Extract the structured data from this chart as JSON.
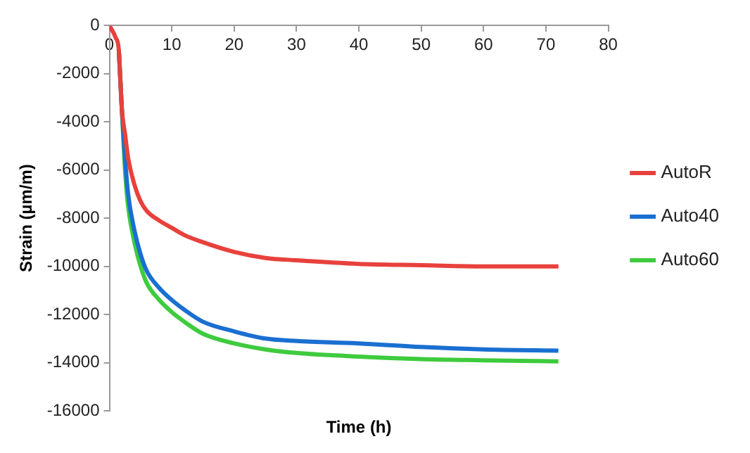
{
  "chart_data": {
    "type": "line",
    "xlabel": "Time (h)",
    "ylabel": "Strain (µm/m)",
    "xlim": [
      0,
      80
    ],
    "xticks": [
      0,
      10,
      20,
      30,
      40,
      50,
      60,
      70,
      80
    ],
    "ylim": [
      -16000,
      0
    ],
    "yticks": [
      -16000,
      -14000,
      -12000,
      -10000,
      -8000,
      -6000,
      -4000,
      -2000,
      0
    ],
    "grid": false,
    "legend": "right",
    "marker": "none",
    "line_style": "solid",
    "series": [
      {
        "name": "AutoR",
        "color": "#e8413c",
        "x": [
          0,
          1,
          1.5,
          2,
          2.5,
          3,
          4,
          5,
          6,
          8,
          10,
          12,
          15,
          20,
          25,
          30,
          40,
          50,
          60,
          72
        ],
        "values": [
          0,
          -500,
          -1000,
          -3500,
          -4500,
          -5500,
          -6600,
          -7300,
          -7700,
          -8100,
          -8400,
          -8700,
          -9000,
          -9400,
          -9650,
          -9750,
          -9900,
          -9950,
          -10000,
          -10000
        ]
      },
      {
        "name": "Auto40",
        "color": "#1a6fd1",
        "x": [
          1.5,
          2,
          2.5,
          3,
          4,
          5,
          6,
          8,
          10,
          12,
          15,
          20,
          25,
          30,
          40,
          50,
          60,
          72
        ],
        "values": [
          -1000,
          -3500,
          -5500,
          -7000,
          -8500,
          -9500,
          -10200,
          -10900,
          -11400,
          -11800,
          -12300,
          -12700,
          -13000,
          -13100,
          -13200,
          -13350,
          -13450,
          -13500
        ]
      },
      {
        "name": "Auto60",
        "color": "#3ecb3e",
        "x": [
          1.5,
          2,
          2.5,
          3,
          4,
          5,
          6,
          8,
          10,
          12,
          15,
          20,
          25,
          30,
          40,
          50,
          60,
          72
        ],
        "values": [
          -1000,
          -3500,
          -6000,
          -7500,
          -9000,
          -10000,
          -10700,
          -11400,
          -11900,
          -12300,
          -12800,
          -13200,
          -13450,
          -13600,
          -13750,
          -13850,
          -13900,
          -13950
        ]
      }
    ]
  }
}
